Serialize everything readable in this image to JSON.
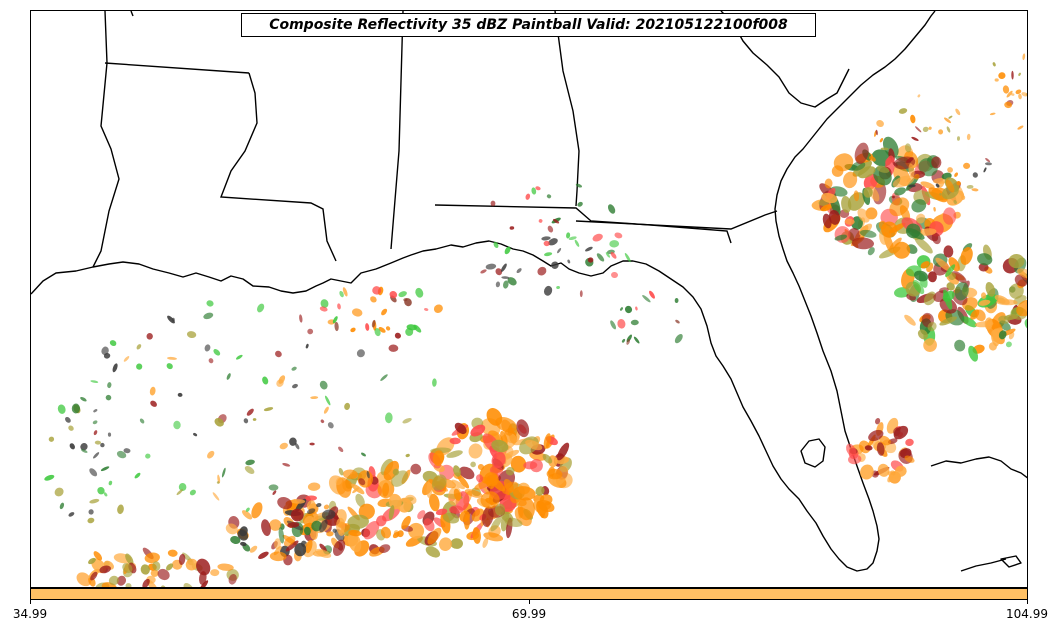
{
  "title": "Composite Reflectivity 35 dBZ Paintball Valid: 202105122100f008",
  "colorbar": {
    "color": "#ffc064",
    "ticks": [
      "34.99",
      "69.99",
      "104.99"
    ]
  },
  "colors": {
    "red": "#ff4a4a",
    "dark_red": "#9b1c1c",
    "orange": "#ff8c00",
    "light_orange": "#ffab40",
    "green": "#3cc83c",
    "dark_green": "#2e7d32",
    "olive": "#a8a23a",
    "dark_gray": "#3a3a3a",
    "brown": "#8b3a2a"
  },
  "icons": {
    "map": "coastline-state-border-map",
    "cells": "reflectivity-paintball-cells"
  }
}
